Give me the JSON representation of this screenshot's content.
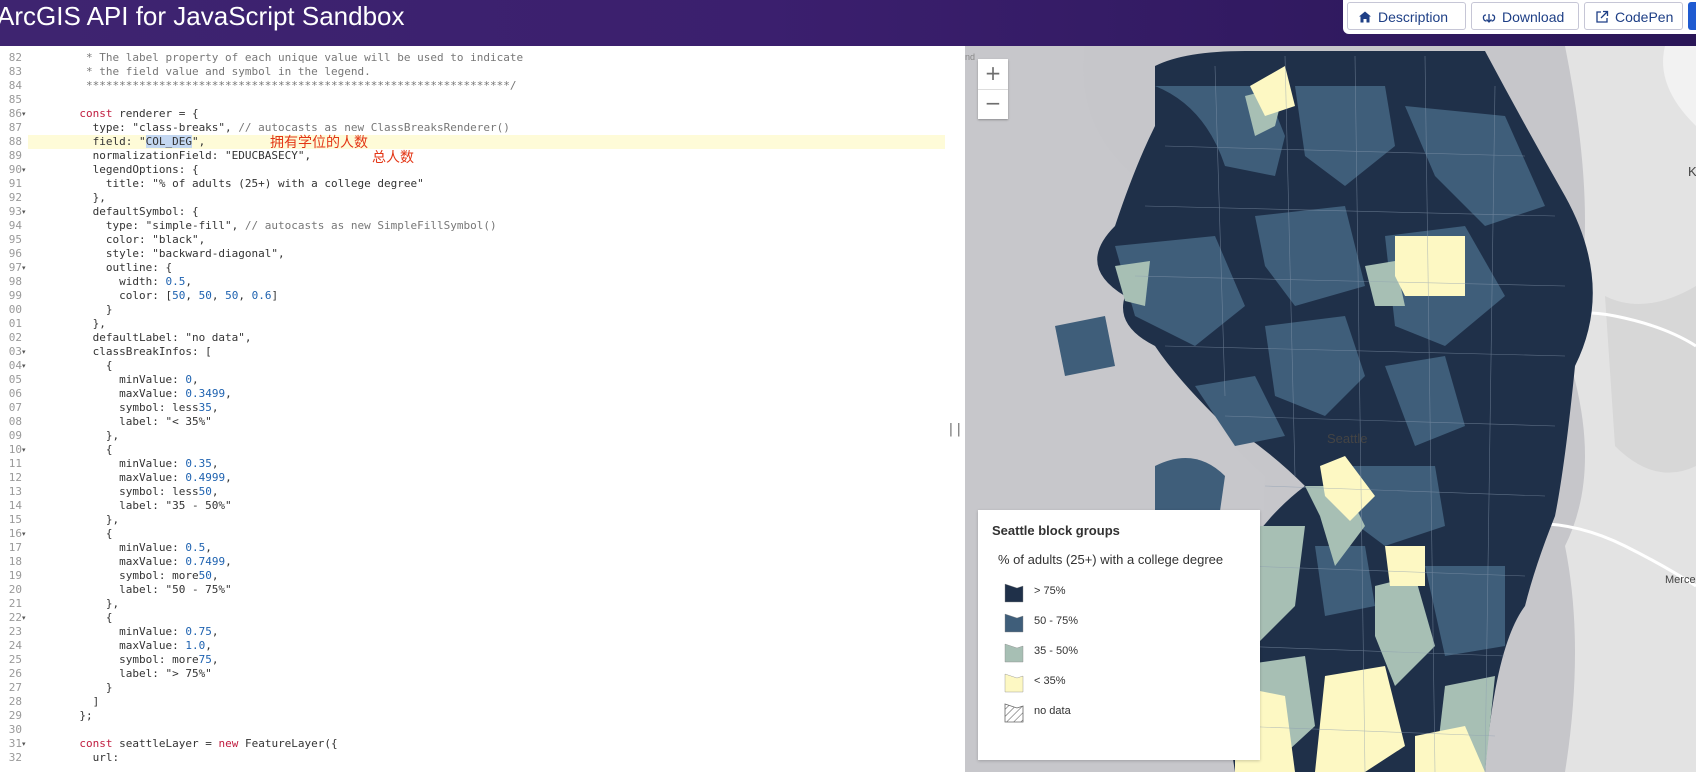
{
  "header": {
    "title": "ArcGIS API for JavaScript Sandbox",
    "buttons": {
      "description": "Description",
      "download": "Download",
      "codepen": "CodePen"
    }
  },
  "editor": {
    "lines": [
      {
        "n": "82",
        "text": "        * The label property of each unique value will be used to indicate",
        "fold": false
      },
      {
        "n": "83",
        "text": "        * the field value and symbol in the legend.",
        "fold": false
      },
      {
        "n": "84",
        "text": "        ****************************************************************/",
        "fold": false
      },
      {
        "n": "85",
        "text": "",
        "fold": false
      },
      {
        "n": "86",
        "text": "       const renderer = {",
        "fold": true
      },
      {
        "n": "87",
        "text": "         type: \"class-breaks\", // autocasts as new ClassBreaksRenderer()",
        "fold": false
      },
      {
        "n": "88",
        "text": "         field: \"COL_DEG\",",
        "fold": false
      },
      {
        "n": "89",
        "text": "         normalizationField: \"EDUCBASECY\",",
        "fold": false
      },
      {
        "n": "90",
        "text": "         legendOptions: {",
        "fold": true
      },
      {
        "n": "91",
        "text": "           title: \"% of adults (25+) with a college degree\"",
        "fold": false
      },
      {
        "n": "92",
        "text": "         },",
        "fold": false
      },
      {
        "n": "93",
        "text": "         defaultSymbol: {",
        "fold": true
      },
      {
        "n": "94",
        "text": "           type: \"simple-fill\", // autocasts as new SimpleFillSymbol()",
        "fold": false
      },
      {
        "n": "95",
        "text": "           color: \"black\",",
        "fold": false
      },
      {
        "n": "96",
        "text": "           style: \"backward-diagonal\",",
        "fold": false
      },
      {
        "n": "97",
        "text": "           outline: {",
        "fold": true
      },
      {
        "n": "98",
        "text": "             width: 0.5,",
        "fold": false
      },
      {
        "n": "99",
        "text": "             color: [50, 50, 50, 0.6]",
        "fold": false
      },
      {
        "n": "00",
        "text": "           }",
        "fold": false
      },
      {
        "n": "01",
        "text": "         },",
        "fold": false
      },
      {
        "n": "02",
        "text": "         defaultLabel: \"no data\",",
        "fold": false
      },
      {
        "n": "03",
        "text": "         classBreakInfos: [",
        "fold": true
      },
      {
        "n": "04",
        "text": "           {",
        "fold": true
      },
      {
        "n": "05",
        "text": "             minValue: 0,",
        "fold": false
      },
      {
        "n": "06",
        "text": "             maxValue: 0.3499,",
        "fold": false
      },
      {
        "n": "07",
        "text": "             symbol: less35,",
        "fold": false
      },
      {
        "n": "08",
        "text": "             label: \"< 35%\"",
        "fold": false
      },
      {
        "n": "09",
        "text": "           },",
        "fold": false
      },
      {
        "n": "10",
        "text": "           {",
        "fold": true
      },
      {
        "n": "11",
        "text": "             minValue: 0.35,",
        "fold": false
      },
      {
        "n": "12",
        "text": "             maxValue: 0.4999,",
        "fold": false
      },
      {
        "n": "13",
        "text": "             symbol: less50,",
        "fold": false
      },
      {
        "n": "14",
        "text": "             label: \"35 - 50%\"",
        "fold": false
      },
      {
        "n": "15",
        "text": "           },",
        "fold": false
      },
      {
        "n": "16",
        "text": "           {",
        "fold": true
      },
      {
        "n": "17",
        "text": "             minValue: 0.5,",
        "fold": false
      },
      {
        "n": "18",
        "text": "             maxValue: 0.7499,",
        "fold": false
      },
      {
        "n": "19",
        "text": "             symbol: more50,",
        "fold": false
      },
      {
        "n": "20",
        "text": "             label: \"50 - 75%\"",
        "fold": false
      },
      {
        "n": "21",
        "text": "           },",
        "fold": false
      },
      {
        "n": "22",
        "text": "           {",
        "fold": true
      },
      {
        "n": "23",
        "text": "             minValue: 0.75,",
        "fold": false
      },
      {
        "n": "24",
        "text": "             maxValue: 1.0,",
        "fold": false
      },
      {
        "n": "25",
        "text": "             symbol: more75,",
        "fold": false
      },
      {
        "n": "26",
        "text": "             label: \"> 75%\"",
        "fold": false
      },
      {
        "n": "27",
        "text": "           }",
        "fold": false
      },
      {
        "n": "28",
        "text": "         ]",
        "fold": false
      },
      {
        "n": "29",
        "text": "       };",
        "fold": false
      },
      {
        "n": "30",
        "text": "",
        "fold": false
      },
      {
        "n": "31",
        "text": "       const seattleLayer = new FeatureLayer({",
        "fold": true
      },
      {
        "n": "32",
        "text": "         url:",
        "fold": false
      }
    ],
    "annotations": {
      "degree_holders": "拥有学位的人数",
      "total_population": "总人数"
    }
  },
  "map": {
    "labels": {
      "city": "Seattle",
      "edge_k": "K",
      "edge_nd": "nd",
      "edge_merce": "Merce"
    },
    "zoom_in": "+",
    "zoom_out": "−",
    "colors": {
      "gt75": "#1f3049",
      "r50_75": "#3f5e7a",
      "r35_50": "#a7bfb4",
      "lt35": "#fdf8c3",
      "water": "#c5c5c9",
      "land": "#e6e6e6"
    }
  },
  "legend": {
    "title": "Seattle block groups",
    "subtitle": "% of adults (25+) with a college degree",
    "items": [
      {
        "label": "> 75%",
        "color": "#1f3049"
      },
      {
        "label": "50 - 75%",
        "color": "#3f5e7a"
      },
      {
        "label": "35 - 50%",
        "color": "#a7bfb4"
      },
      {
        "label": "< 35%",
        "color": "#fdf8c3"
      },
      {
        "label": "no data",
        "color": "hatch"
      }
    ]
  }
}
